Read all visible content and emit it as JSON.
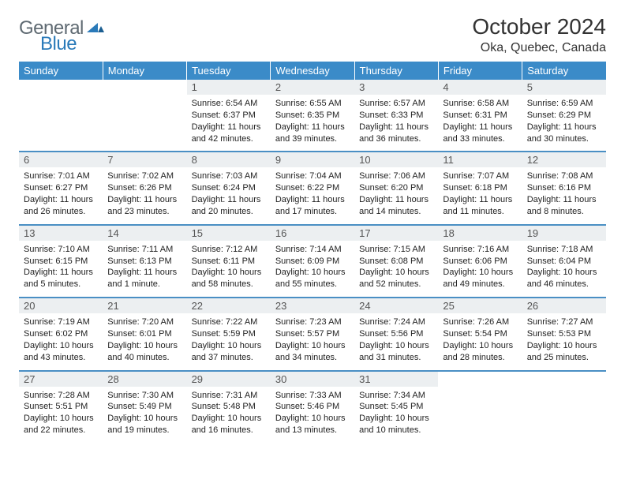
{
  "logo": {
    "word1": "General",
    "word2": "Blue",
    "text1_color": "#5f6a72",
    "text2_color": "#2a7ab9",
    "mark_color": "#2a7ab9"
  },
  "title": "October 2024",
  "location": "Oka, Quebec, Canada",
  "colors": {
    "header_bg": "#3b8bc8",
    "header_text": "#ffffff",
    "daynum_bg": "#eceff1",
    "divider": "#4a8fc4",
    "body_text": "#222222"
  },
  "fonts": {
    "title_size": 28,
    "location_size": 16,
    "dayheader_size": 13,
    "daynum_size": 13,
    "cell_size": 11
  },
  "day_headers": [
    "Sunday",
    "Monday",
    "Tuesday",
    "Wednesday",
    "Thursday",
    "Friday",
    "Saturday"
  ],
  "weeks": [
    [
      null,
      null,
      {
        "n": "1",
        "sunrise": "6:54 AM",
        "sunset": "6:37 PM",
        "daylight": "11 hours and 42 minutes."
      },
      {
        "n": "2",
        "sunrise": "6:55 AM",
        "sunset": "6:35 PM",
        "daylight": "11 hours and 39 minutes."
      },
      {
        "n": "3",
        "sunrise": "6:57 AM",
        "sunset": "6:33 PM",
        "daylight": "11 hours and 36 minutes."
      },
      {
        "n": "4",
        "sunrise": "6:58 AM",
        "sunset": "6:31 PM",
        "daylight": "11 hours and 33 minutes."
      },
      {
        "n": "5",
        "sunrise": "6:59 AM",
        "sunset": "6:29 PM",
        "daylight": "11 hours and 30 minutes."
      }
    ],
    [
      {
        "n": "6",
        "sunrise": "7:01 AM",
        "sunset": "6:27 PM",
        "daylight": "11 hours and 26 minutes."
      },
      {
        "n": "7",
        "sunrise": "7:02 AM",
        "sunset": "6:26 PM",
        "daylight": "11 hours and 23 minutes."
      },
      {
        "n": "8",
        "sunrise": "7:03 AM",
        "sunset": "6:24 PM",
        "daylight": "11 hours and 20 minutes."
      },
      {
        "n": "9",
        "sunrise": "7:04 AM",
        "sunset": "6:22 PM",
        "daylight": "11 hours and 17 minutes."
      },
      {
        "n": "10",
        "sunrise": "7:06 AM",
        "sunset": "6:20 PM",
        "daylight": "11 hours and 14 minutes."
      },
      {
        "n": "11",
        "sunrise": "7:07 AM",
        "sunset": "6:18 PM",
        "daylight": "11 hours and 11 minutes."
      },
      {
        "n": "12",
        "sunrise": "7:08 AM",
        "sunset": "6:16 PM",
        "daylight": "11 hours and 8 minutes."
      }
    ],
    [
      {
        "n": "13",
        "sunrise": "7:10 AM",
        "sunset": "6:15 PM",
        "daylight": "11 hours and 5 minutes."
      },
      {
        "n": "14",
        "sunrise": "7:11 AM",
        "sunset": "6:13 PM",
        "daylight": "11 hours and 1 minute."
      },
      {
        "n": "15",
        "sunrise": "7:12 AM",
        "sunset": "6:11 PM",
        "daylight": "10 hours and 58 minutes."
      },
      {
        "n": "16",
        "sunrise": "7:14 AM",
        "sunset": "6:09 PM",
        "daylight": "10 hours and 55 minutes."
      },
      {
        "n": "17",
        "sunrise": "7:15 AM",
        "sunset": "6:08 PM",
        "daylight": "10 hours and 52 minutes."
      },
      {
        "n": "18",
        "sunrise": "7:16 AM",
        "sunset": "6:06 PM",
        "daylight": "10 hours and 49 minutes."
      },
      {
        "n": "19",
        "sunrise": "7:18 AM",
        "sunset": "6:04 PM",
        "daylight": "10 hours and 46 minutes."
      }
    ],
    [
      {
        "n": "20",
        "sunrise": "7:19 AM",
        "sunset": "6:02 PM",
        "daylight": "10 hours and 43 minutes."
      },
      {
        "n": "21",
        "sunrise": "7:20 AM",
        "sunset": "6:01 PM",
        "daylight": "10 hours and 40 minutes."
      },
      {
        "n": "22",
        "sunrise": "7:22 AM",
        "sunset": "5:59 PM",
        "daylight": "10 hours and 37 minutes."
      },
      {
        "n": "23",
        "sunrise": "7:23 AM",
        "sunset": "5:57 PM",
        "daylight": "10 hours and 34 minutes."
      },
      {
        "n": "24",
        "sunrise": "7:24 AM",
        "sunset": "5:56 PM",
        "daylight": "10 hours and 31 minutes."
      },
      {
        "n": "25",
        "sunrise": "7:26 AM",
        "sunset": "5:54 PM",
        "daylight": "10 hours and 28 minutes."
      },
      {
        "n": "26",
        "sunrise": "7:27 AM",
        "sunset": "5:53 PM",
        "daylight": "10 hours and 25 minutes."
      }
    ],
    [
      {
        "n": "27",
        "sunrise": "7:28 AM",
        "sunset": "5:51 PM",
        "daylight": "10 hours and 22 minutes."
      },
      {
        "n": "28",
        "sunrise": "7:30 AM",
        "sunset": "5:49 PM",
        "daylight": "10 hours and 19 minutes."
      },
      {
        "n": "29",
        "sunrise": "7:31 AM",
        "sunset": "5:48 PM",
        "daylight": "10 hours and 16 minutes."
      },
      {
        "n": "30",
        "sunrise": "7:33 AM",
        "sunset": "5:46 PM",
        "daylight": "10 hours and 13 minutes."
      },
      {
        "n": "31",
        "sunrise": "7:34 AM",
        "sunset": "5:45 PM",
        "daylight": "10 hours and 10 minutes."
      },
      null,
      null
    ]
  ],
  "labels": {
    "sunrise": "Sunrise: ",
    "sunset": "Sunset: ",
    "daylight": "Daylight: "
  }
}
